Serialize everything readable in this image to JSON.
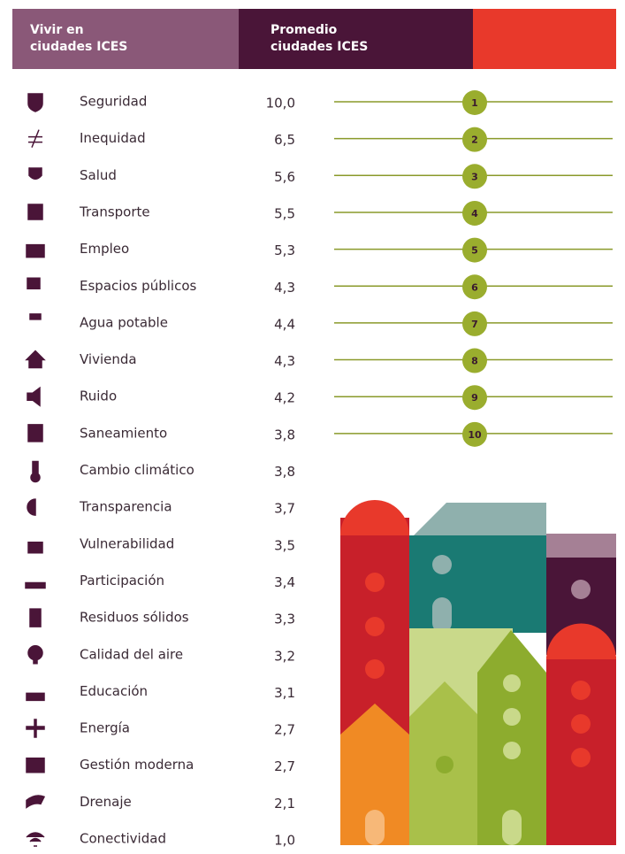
{
  "header": {
    "col1": [
      "Vivir en",
      "ciudades ICES"
    ],
    "col2": [
      "Promedio",
      "ciudades ICES"
    ]
  },
  "rows": [
    {
      "label": "Seguridad",
      "value": "10,0",
      "rank": 1
    },
    {
      "label": "Inequidad",
      "value": "6,5",
      "rank": 2
    },
    {
      "label": "Salud",
      "value": "5,6",
      "rank": 3
    },
    {
      "label": "Transporte",
      "value": "5,5",
      "rank": 4
    },
    {
      "label": "Empleo",
      "value": "5,3",
      "rank": 5
    },
    {
      "label": "Espacios públicos",
      "value": "4,3",
      "rank": 6
    },
    {
      "label": "Agua potable",
      "value": "4,4",
      "rank": 7
    },
    {
      "label": "Vivienda",
      "value": "4,3",
      "rank": 8
    },
    {
      "label": "Ruido",
      "value": "4,2",
      "rank": 9
    },
    {
      "label": "Saneamiento",
      "value": "3,8",
      "rank": 10
    },
    {
      "label": "Cambio climático",
      "value": "3,8"
    },
    {
      "label": "Transparencia",
      "value": "3,7"
    },
    {
      "label": "Vulnerabilidad",
      "value": "3,5"
    },
    {
      "label": "Participación",
      "value": "3,4"
    },
    {
      "label": "Residuos sólidos",
      "value": "3,3"
    },
    {
      "label": "Calidad del aire",
      "value": "3,2"
    },
    {
      "label": "Educación",
      "value": "3,1"
    },
    {
      "label": "Energía",
      "value": "2,7"
    },
    {
      "label": "Gestión moderna",
      "value": "2,7"
    },
    {
      "label": "Drenaje",
      "value": "2,1"
    },
    {
      "label": "Conectividad",
      "value": "1,0"
    }
  ]
}
